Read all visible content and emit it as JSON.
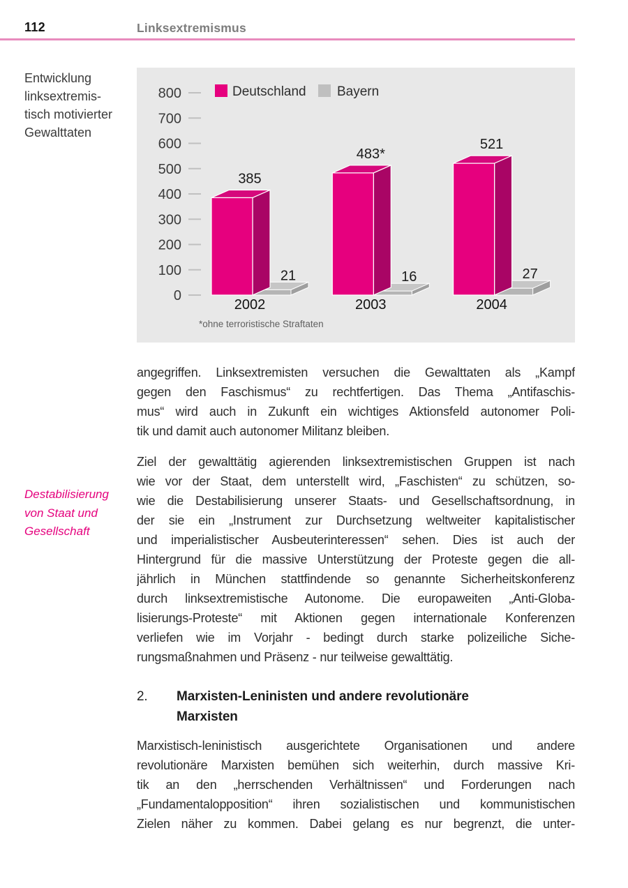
{
  "page": {
    "number": "112",
    "section": "Linksextremismus"
  },
  "colors": {
    "accent_pink": "#e6007e",
    "bar_top": "#d6087c",
    "bar_side": "#a90565",
    "bayern_top": "#c6c6c6",
    "bayern_front": "#b5b5b5",
    "bayern_side": "#9f9f9f",
    "header_rule": "#e88bbd",
    "panel_bg": "#e8e8e8",
    "margin_note_pink": "#e5007d",
    "tick_gray": "#c0c0c0"
  },
  "margin_notes": {
    "chart_caption_lines": [
      "Entwicklung",
      "linksextremis-",
      "tisch motivierter",
      "Gewalttaten"
    ],
    "destabilisierung_lines": [
      "Destabilisierung",
      "von Staat und",
      "Gesellschaft"
    ]
  },
  "chart_data": {
    "type": "bar",
    "style": "3d-grouped-bars",
    "title": "Entwicklung linksextremistisch motivierter Gewalttaten",
    "categories": [
      "2002",
      "2003",
      "2004"
    ],
    "series": [
      {
        "name": "Deutschland",
        "values": [
          385,
          483,
          521
        ],
        "labels": [
          "385",
          "483*",
          "521"
        ],
        "color": "#e6007e"
      },
      {
        "name": "Bayern",
        "values": [
          21,
          16,
          27
        ],
        "labels": [
          "21",
          "16",
          "27"
        ],
        "color": "#c6c6c6"
      }
    ],
    "ylim": [
      0,
      800
    ],
    "ytick_step": 100,
    "grid": false,
    "legend_position": "top-left",
    "footnote": "*ohne terroristische Straftaten",
    "xlabel": "",
    "ylabel": ""
  },
  "content": [
    {
      "type": "paragraph",
      "justify_last_line": false,
      "lines": [
        "angegriffen. Linksextremisten versuchen die Gewalttaten als „Kampf",
        "gegen den Faschismus“ zu rechtfertigen. Das Thema „Antifaschis-",
        "mus“ wird auch in Zukunft ein wichtiges Aktionsfeld autonomer Poli-",
        "tik und damit auch autonomer Militanz bleiben."
      ]
    },
    {
      "type": "paragraph",
      "justify_last_line": false,
      "lines": [
        "Ziel der gewalttätig agierenden linksextremistischen Gruppen ist nach",
        "wie vor der Staat, dem unterstellt wird, „Faschisten“ zu schützen, so-",
        "wie die Destabilisierung unserer Staats- und Gesellschaftsordnung, in",
        "der sie ein „Instrument zur Durchsetzung weltweiter kapitalistischer",
        "und imperialistischer Ausbeuterinteressen“ sehen. Dies ist auch der",
        "Hintergrund für die massive Unterstützung der Proteste gegen die all-",
        "jährlich in München stattfindende so genannte Sicherheitskonferenz",
        "durch linksextremistische Autonome. Die europaweiten „Anti-Globa-",
        "lisierungs-Proteste“ mit Aktionen gegen internationale Konferenzen",
        "verliefen wie im Vorjahr - bedingt durch starke polizeiliche Siche-",
        "rungsmaßnahmen und Präsenz - nur teilweise gewalttätig."
      ]
    },
    {
      "type": "heading",
      "number": "2.",
      "lines": [
        "Marxisten-Leninisten und andere revolutionäre",
        "Marxisten"
      ]
    },
    {
      "type": "paragraph",
      "justify_last_line": true,
      "lines": [
        "Marxistisch-leninistisch ausgerichtete Organisationen und andere",
        "revolutionäre Marxisten bemühen sich weiterhin, durch massive Kri-",
        "tik an den „herrschenden Verhältnissen“ und Forderungen nach",
        "„Fundamentalopposition“ ihren sozialistischen und kommunistischen",
        "Zielen näher zu kommen. Dabei gelang es nur begrenzt, die unter-"
      ]
    }
  ]
}
